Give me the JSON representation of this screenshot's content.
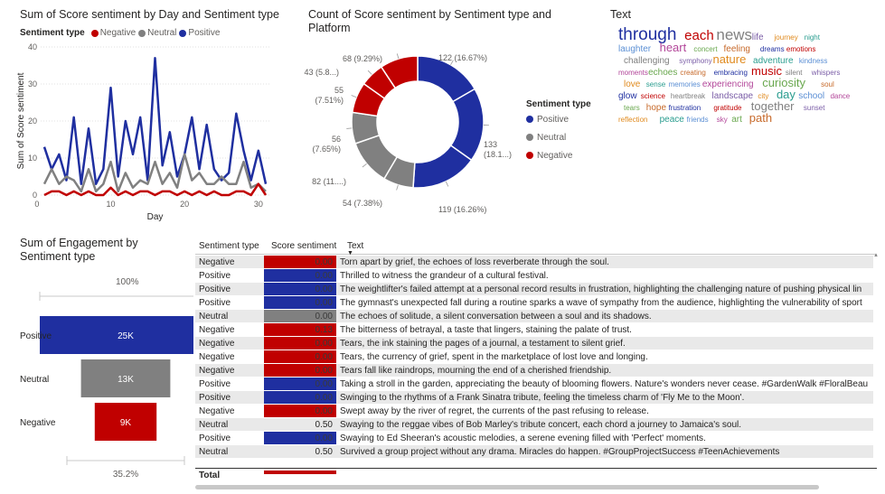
{
  "line_chart": {
    "title": "Sum of Score sentiment by Day and Sentiment type",
    "legend_title": "Sentiment type",
    "colors": {
      "Negative": "#c00000",
      "Neutral": "#808080",
      "Positive": "#1f2fa0"
    }
  },
  "donut_chart": {
    "title_line1": "Count of Score sentiment by Sentiment type and",
    "title_line2": "Platform",
    "legend_title": "Sentiment type",
    "legend": [
      "Positive",
      "Neutral",
      "Negative"
    ]
  },
  "wordcloud": {
    "title": "Text",
    "words": [
      "through",
      "each",
      "news",
      "life",
      "journey",
      "night",
      "laughter",
      "heart",
      "concert",
      "feeling",
      "dreams",
      "emotions",
      "challenging",
      "symphony",
      "nature",
      "adventure",
      "kindness",
      "moments",
      "echoes",
      "creating",
      "embracing",
      "music",
      "silent",
      "whispers",
      "love",
      "sense",
      "memories",
      "experiencing",
      "curiosity",
      "soul",
      "glow",
      "science",
      "heartbreak",
      "landscape",
      "city",
      "day",
      "school",
      "dance",
      "tears",
      "hope",
      "frustration",
      "gratitude",
      "together",
      "sunset",
      "reflection",
      "peace",
      "friends",
      "sky",
      "art",
      "path"
    ]
  },
  "funnel": {
    "title_line1": "Sum of Engagement by",
    "title_line2": "Sentiment type",
    "top_pct": "100%",
    "bottom_pct": "35.2%"
  },
  "table": {
    "headers": [
      "Sentiment type",
      "Score sentiment",
      "Text"
    ],
    "rows": [
      {
        "type": "Negative",
        "score": "0.00",
        "text": "Torn apart by grief, the echoes of loss reverberate through the soul."
      },
      {
        "type": "Positive",
        "score": "0.00",
        "text": "Thrilled to witness the grandeur of a cultural festival."
      },
      {
        "type": "Positive",
        "score": "0.00",
        "text": "The weightlifter's failed attempt at a personal record results in frustration, highlighting the challenging nature of pushing physical lin"
      },
      {
        "type": "Positive",
        "score": "0.00",
        "text": "The gymnast's unexpected fall during a routine sparks a wave of sympathy from the audience, highlighting the vulnerability of sport"
      },
      {
        "type": "Neutral",
        "score": "0.00",
        "text": "The echoes of solitude, a silent conversation between a soul and its shadows."
      },
      {
        "type": "Negative",
        "score": "0.13",
        "text": "The bitterness of betrayal, a taste that lingers, staining the palate of trust."
      },
      {
        "type": "Negative",
        "score": "0.00",
        "text": "Tears, the ink staining the pages of a journal, a testament to silent grief."
      },
      {
        "type": "Negative",
        "score": "0.00",
        "text": "Tears, the currency of grief, spent in the marketplace of lost love and longing."
      },
      {
        "type": "Negative",
        "score": "0.00",
        "text": "Tears fall like raindrops, mourning the end of a cherished friendship."
      },
      {
        "type": "Positive",
        "score": "0.00",
        "text": "Taking a stroll in the garden, appreciating the beauty of blooming flowers. Nature's wonders never cease. #GardenWalk #FloralBeau"
      },
      {
        "type": "Positive",
        "score": "0.00",
        "text": "Swinging to the rhythms of a Frank Sinatra tribute, feeling the timeless charm of 'Fly Me to the Moon'."
      },
      {
        "type": "Negative",
        "score": "0.00",
        "text": "Swept away by the river of regret, the currents of the past refusing to release."
      },
      {
        "type": "Neutral",
        "score": "0.50",
        "text": "Swaying to the reggae vibes of Bob Marley's tribute concert, each chord a journey to Jamaica's soul."
      },
      {
        "type": "Positive",
        "score": "0.00",
        "text": "Swaying to Ed Sheeran's acoustic melodies, a serene evening filled with 'Perfect' moments."
      },
      {
        "type": "Neutral",
        "score": "0.50",
        "text": "Survived a group project without any drama. Miracles do happen. #GroupProjectSuccess #TeenAchievements"
      }
    ],
    "total_label": "Total"
  },
  "chart_data": [
    {
      "type": "line",
      "title": "Sum of Score sentiment by Day and Sentiment type",
      "xlabel": "Day",
      "ylabel": "Sum of Score sentiment",
      "xlim": [
        1,
        31
      ],
      "ylim": [
        0,
        40
      ],
      "xticks": [
        0,
        10,
        20,
        30
      ],
      "yticks": [
        0,
        10,
        20,
        30,
        40
      ],
      "x": [
        1,
        2,
        3,
        4,
        5,
        6,
        7,
        8,
        9,
        10,
        11,
        12,
        13,
        14,
        15,
        16,
        17,
        18,
        19,
        20,
        21,
        22,
        23,
        24,
        25,
        26,
        27,
        28,
        29,
        30,
        31
      ],
      "series": [
        {
          "name": "Positive",
          "values": [
            13,
            7,
            11,
            4,
            21,
            3,
            18,
            3,
            7,
            29,
            5,
            20,
            11,
            21,
            4,
            37,
            8,
            17,
            5,
            11,
            21,
            7,
            19,
            7,
            4,
            6,
            22,
            12,
            4,
            12,
            3
          ]
        },
        {
          "name": "Neutral",
          "values": [
            3,
            7,
            3,
            5,
            4,
            1,
            7,
            1,
            3,
            9,
            1,
            6,
            2,
            4,
            3,
            9,
            3,
            6,
            2,
            11,
            4,
            6,
            3,
            3,
            5,
            3,
            3,
            9,
            2,
            3,
            1
          ]
        },
        {
          "name": "Negative",
          "values": [
            0,
            1,
            1,
            0,
            1,
            0,
            1,
            0,
            0,
            2,
            0,
            1,
            0,
            1,
            1,
            0,
            1,
            1,
            0,
            1,
            0,
            1,
            0,
            1,
            0,
            0,
            1,
            1,
            0,
            3,
            0
          ]
        }
      ]
    },
    {
      "type": "pie",
      "title": "Count of Score sentiment by Sentiment type and Platform",
      "slices": [
        {
          "label": "122 (16.67%)",
          "value": 122,
          "group": "Positive"
        },
        {
          "label": "133 (18.1...)",
          "value": 133,
          "group": "Positive"
        },
        {
          "label": "119 (16.26%)",
          "value": 119,
          "group": "Positive"
        },
        {
          "label": "54 (7.38%)",
          "value": 54,
          "group": "Neutral"
        },
        {
          "label": "82 (11....)",
          "value": 82,
          "group": "Neutral"
        },
        {
          "label": "56 (7.65%)",
          "value": 56,
          "group": "Neutral"
        },
        {
          "label": "55 (7.51%)",
          "value": 55,
          "group": "Negative"
        },
        {
          "label": "43 (5.8...)",
          "value": 43,
          "group": "Negative"
        },
        {
          "label": "68 (9.29%)",
          "value": 68,
          "group": "Negative"
        }
      ]
    },
    {
      "type": "bar",
      "title": "Sum of Engagement by Sentiment type",
      "categories": [
        "Positive",
        "Neutral",
        "Negative"
      ],
      "values": [
        25000,
        13000,
        9000
      ],
      "labels": [
        "25K",
        "13K",
        "9K"
      ]
    }
  ]
}
